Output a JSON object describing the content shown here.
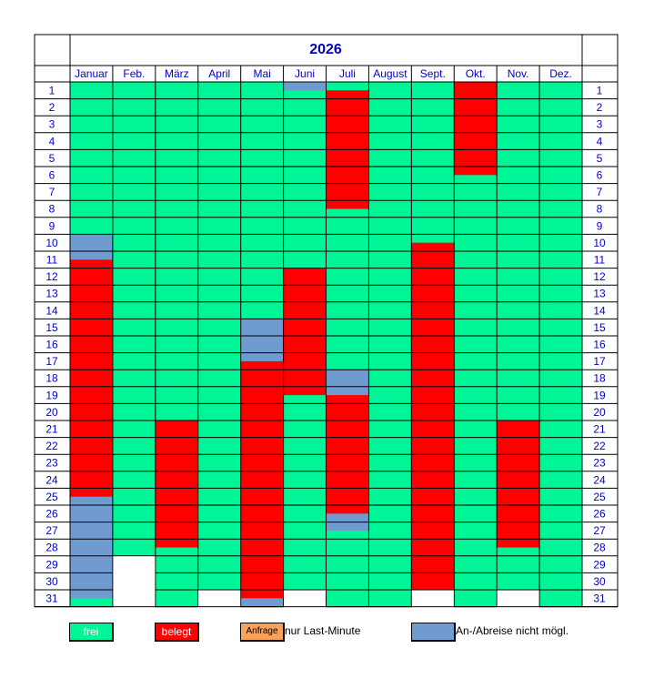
{
  "calendar": {
    "year": "2026",
    "months": [
      "Januar",
      "Feb.",
      "März",
      "April",
      "Mai",
      "Juni",
      "Juli",
      "August",
      "Sept.",
      "Okt.",
      "Nov.",
      "Dez."
    ],
    "days_in_month": [
      31,
      28,
      31,
      30,
      31,
      30,
      31,
      31,
      30,
      31,
      30,
      31
    ],
    "days": [
      "1",
      "2",
      "3",
      "4",
      "5",
      "6",
      "7",
      "8",
      "9",
      "10",
      "11",
      "12",
      "13",
      "14",
      "15",
      "16",
      "17",
      "18",
      "19",
      "20",
      "21",
      "22",
      "23",
      "24",
      "25",
      "26",
      "27",
      "28",
      "29",
      "30",
      "31"
    ],
    "colors": {
      "free": "#00f596",
      "booked": "#ff0000",
      "no_arrival": "#6f9bd0",
      "request": "#f7a15a",
      "header_text": "#0000cc",
      "grid": "#000000"
    },
    "booked_periods": [
      {
        "month": "Januar",
        "from": 11.5,
        "to": 25.5
      },
      {
        "month": "März",
        "from": 21,
        "to": 28.5
      },
      {
        "month": "Mai",
        "from": 17.5,
        "to": 31.5
      },
      {
        "month": "Juni",
        "from": 12,
        "to": 19.5
      },
      {
        "month": "Juli",
        "from": 1.5,
        "to": 8.5
      },
      {
        "month": "Juli",
        "from": 19.5,
        "to": 26.5
      },
      {
        "month": "Sept.",
        "from": 10.5,
        "to": 31
      },
      {
        "month": "Okt.",
        "from": 1,
        "to": 6.5
      },
      {
        "month": "Nov.",
        "from": 21,
        "to": 28.5
      }
    ],
    "no_arrival_periods": [
      {
        "month": "Januar",
        "from": 10,
        "to": 11.5
      },
      {
        "month": "Januar",
        "from": 25.5,
        "to": 31.5
      },
      {
        "month": "Mai",
        "from": 15,
        "to": 17.5
      },
      {
        "month": "Mai",
        "from": 31.5,
        "to": 32
      },
      {
        "month": "Juni",
        "from": 1,
        "to": 1.5
      },
      {
        "month": "Juli",
        "from": 18,
        "to": 19.5
      },
      {
        "month": "Juli",
        "from": 26,
        "to": 27.5
      }
    ]
  },
  "legend": {
    "free_label": "frei",
    "booked_label": "belegt",
    "request_label": "Anfrage",
    "request_note": "nur Last-Minute",
    "no_arrival_label": "An-/Abreise nicht mögl."
  }
}
